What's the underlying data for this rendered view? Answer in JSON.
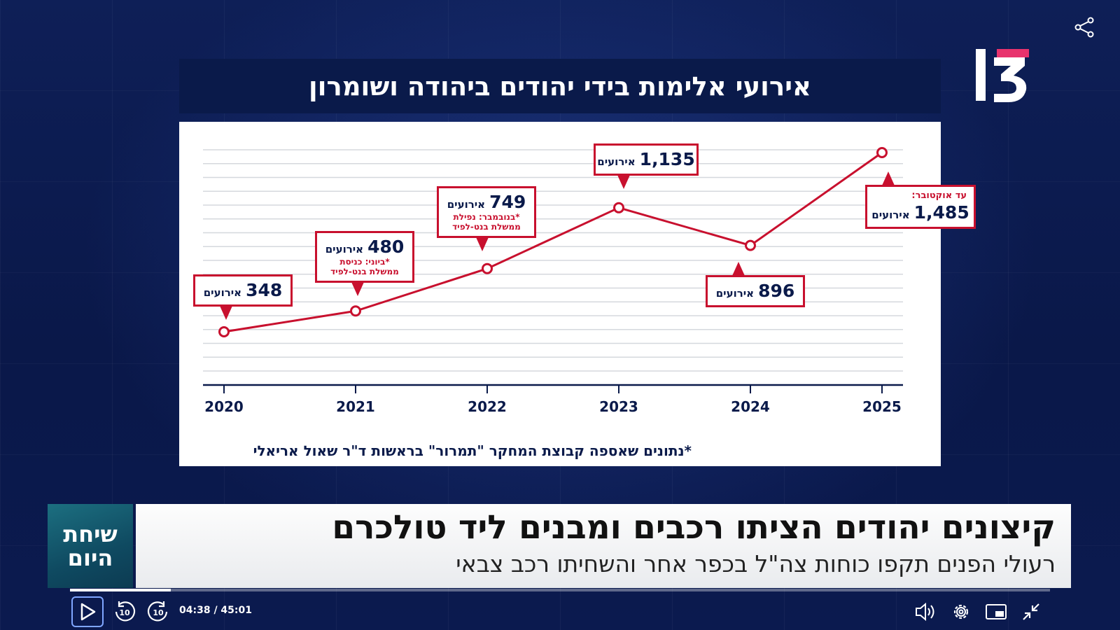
{
  "chart_title": "אירועי אלימות בידי יהודים ביהודה ושומרון",
  "chart_data": {
    "type": "line",
    "title": "אירועי אלימות בידי יהודים ביהודה ושומרון",
    "categories": [
      "2020",
      "2021",
      "2022",
      "2023",
      "2024",
      "2025"
    ],
    "values": [
      348,
      480,
      749,
      1135,
      896,
      1485
    ],
    "ylim": [
      200,
      1600
    ],
    "grid": true,
    "series_color": "#c8102e",
    "annotations": [
      {
        "value": "348",
        "unit": "אירועים"
      },
      {
        "value": "480",
        "unit": "אירועים",
        "note": "*ביוני: כניסת ממשלת בנט-לפיד"
      },
      {
        "value": "749",
        "unit": "אירועים",
        "note": "*בנובמבר: נפילת ממשלת בנט-לפיד"
      },
      {
        "value": "1,135",
        "unit": "אירועים"
      },
      {
        "value": "896",
        "unit": "אירועים"
      },
      {
        "value": "1,485",
        "unit": "אירועים",
        "pre": "עד אוקטובר:"
      }
    ],
    "footnote": "*נתונים שאספה קבוצת המחקר \"תמרור\" בראשות ד\"ר שאול אריאלי"
  },
  "ticker": {
    "tag_line1": "שיחת",
    "tag_line2": "היום",
    "headline": "קיצונים יהודים הציתו רכבים ומבנים ליד טולכרם",
    "subline": "רעולי הפנים תקפו כוחות צה\"ל בכפר אחר והשחיתו רכב צבאי"
  },
  "player": {
    "time": "04:38 / 45:01",
    "progress": 0.103,
    "skip_back_label": "10",
    "skip_forward_label": "10"
  },
  "colors": {
    "accent_red": "#c8102e",
    "navy": "#0a1a4a",
    "logo_pink": "#e8336d"
  },
  "icons": [
    "share-icon",
    "channel-13-logo",
    "play-icon",
    "rewind-10-icon",
    "forward-10-icon",
    "volume-icon",
    "settings-gear-icon",
    "picture-in-picture-icon",
    "exit-fullscreen-icon"
  ]
}
